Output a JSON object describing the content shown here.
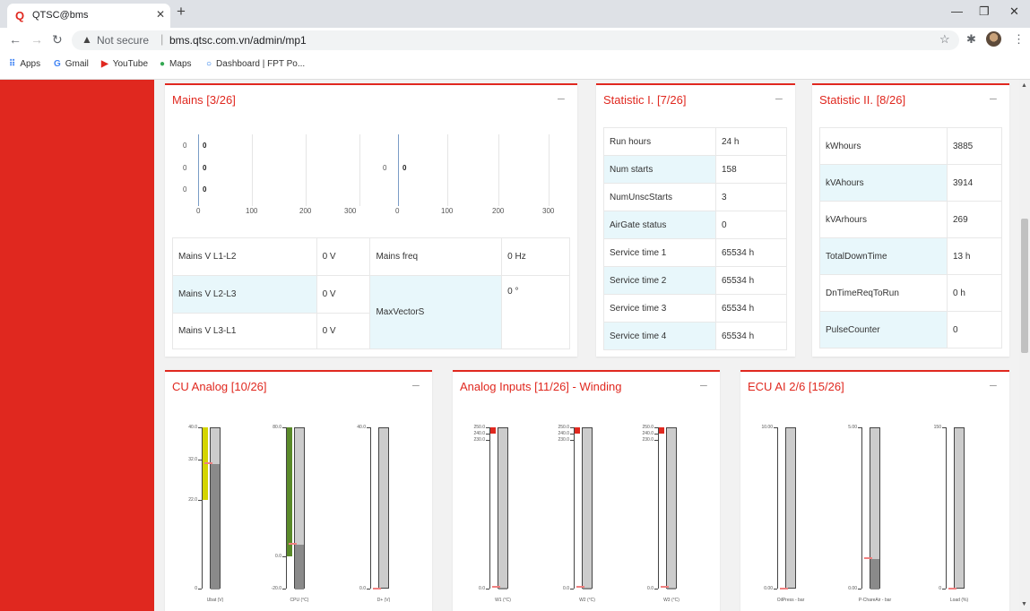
{
  "browser": {
    "tab_title": "QTSC@bms",
    "not_secure": "Not secure",
    "url": "bms.qtsc.com.vn/admin/mp1",
    "bookmarks": [
      "Apps",
      "Gmail",
      "YouTube",
      "Maps",
      "Dashboard | FPT Po..."
    ]
  },
  "mains": {
    "title": "Mains [3/26]",
    "left_chart": {
      "rows": [
        "0",
        "0",
        "0"
      ],
      "values": [
        "0",
        "0",
        "0"
      ],
      "ticks": [
        "0",
        "100",
        "200",
        "300"
      ]
    },
    "right_chart": {
      "rows": [
        "0"
      ],
      "values": [
        "0"
      ],
      "ticks": [
        "0",
        "100",
        "200",
        "300"
      ]
    },
    "table": {
      "v12_label": "Mains V L1-L2",
      "v12_value": "0 V",
      "v23_label": "Mains V L2-L3",
      "v23_value": "0 V",
      "v31_label": "Mains V L3-L1",
      "v31_value": "0 V",
      "freq_label": "Mains freq",
      "freq_value": "0 Hz",
      "vector_label": "MaxVectorS",
      "vector_value": "0 °"
    }
  },
  "stat1": {
    "title": "Statistic I. [7/26]",
    "rows": [
      {
        "label": "Run hours",
        "value": "24 h"
      },
      {
        "label": "Num starts",
        "value": "158"
      },
      {
        "label": "NumUnscStarts",
        "value": "3"
      },
      {
        "label": "AirGate status",
        "value": "0"
      },
      {
        "label": "Service time 1",
        "value": "65534 h"
      },
      {
        "label": "Service time 2",
        "value": "65534 h"
      },
      {
        "label": "Service time 3",
        "value": "65534 h"
      },
      {
        "label": "Service time 4",
        "value": "65534 h"
      }
    ]
  },
  "stat2": {
    "title": "Statistic II. [8/26]",
    "rows": [
      {
        "label": "kWhours",
        "value": "3885"
      },
      {
        "label": "kVAhours",
        "value": "3914"
      },
      {
        "label": "kVArhours",
        "value": "269"
      },
      {
        "label": "TotalDownTime",
        "value": "13 h"
      },
      {
        "label": "DnTimeReqToRun",
        "value": "0 h"
      },
      {
        "label": "PulseCounter",
        "value": "0"
      }
    ]
  },
  "cu_analog": {
    "title": "CU Analog [10/26]",
    "gauges": [
      {
        "label": "Ubat (V)",
        "ticks": [
          "40.0",
          "32.0",
          "22.0",
          "0"
        ],
        "tick_values": [
          40,
          32,
          22,
          0
        ],
        "min": 0,
        "max": 40,
        "value": 31.2,
        "color_from": 22,
        "color_to": 40,
        "color": "#d4d400"
      },
      {
        "label": "CPU (°C)",
        "ticks": [
          "80.0",
          "0.0",
          "-20.0"
        ],
        "tick_values": [
          80,
          0,
          -20
        ],
        "min": -20,
        "max": 80,
        "value": 8.0,
        "color_from": 0,
        "color_to": 80,
        "color": "#5a8a2a"
      },
      {
        "label": "D+ (V)",
        "ticks": [
          "40.0",
          "0.0"
        ],
        "tick_values": [
          40,
          0
        ],
        "min": 0,
        "max": 40,
        "value": 0,
        "color_from": 0,
        "color_to": 0,
        "color": "#d4d400"
      }
    ]
  },
  "analog_inputs": {
    "title": "Analog Inputs [11/26] - Winding",
    "gauges": [
      {
        "label": "W1 (°C)",
        "ticks": [
          "250.0",
          "240.0",
          "230.0",
          "0.0"
        ],
        "tick_values": [
          250,
          240,
          230,
          0
        ],
        "min": 0,
        "max": 250,
        "value": 3,
        "color_from": 240,
        "color_to": 250,
        "color": "#e0281f"
      },
      {
        "label": "W2 (°C)",
        "ticks": [
          "250.0",
          "240.0",
          "230.0",
          "0.0"
        ],
        "tick_values": [
          250,
          240,
          230,
          0
        ],
        "min": 0,
        "max": 250,
        "value": 3,
        "color_from": 240,
        "color_to": 250,
        "color": "#e0281f"
      },
      {
        "label": "W3 (°C)",
        "ticks": [
          "250.0",
          "240.0",
          "230.0",
          "0.0"
        ],
        "tick_values": [
          250,
          240,
          230,
          0
        ],
        "min": 0,
        "max": 250,
        "value": 3,
        "color_from": 240,
        "color_to": 250,
        "color": "#e0281f"
      }
    ]
  },
  "ecu_ai": {
    "title": "ECU AI 2/6 [15/26]",
    "gauges": [
      {
        "label": "OilPress - bar",
        "ticks": [
          "10.00",
          "0.00"
        ],
        "tick_values": [
          10,
          0
        ],
        "min": 0,
        "max": 10,
        "value": 0,
        "color_from": 0,
        "color_to": 0,
        "color": "#e0281f"
      },
      {
        "label": "P-ChareAir - bar",
        "ticks": [
          "5.00",
          "0.00"
        ],
        "tick_values": [
          5,
          0
        ],
        "min": 0,
        "max": 5,
        "value": 0.95,
        "color_from": 0,
        "color_to": 0,
        "color": "#e0281f"
      },
      {
        "label": "Load (%)",
        "ticks": [
          "150",
          "0"
        ],
        "tick_values": [
          150,
          0
        ],
        "min": 0,
        "max": 150,
        "value": 0,
        "color_from": 0,
        "color_to": 0,
        "color": "#e0281f"
      }
    ]
  }
}
